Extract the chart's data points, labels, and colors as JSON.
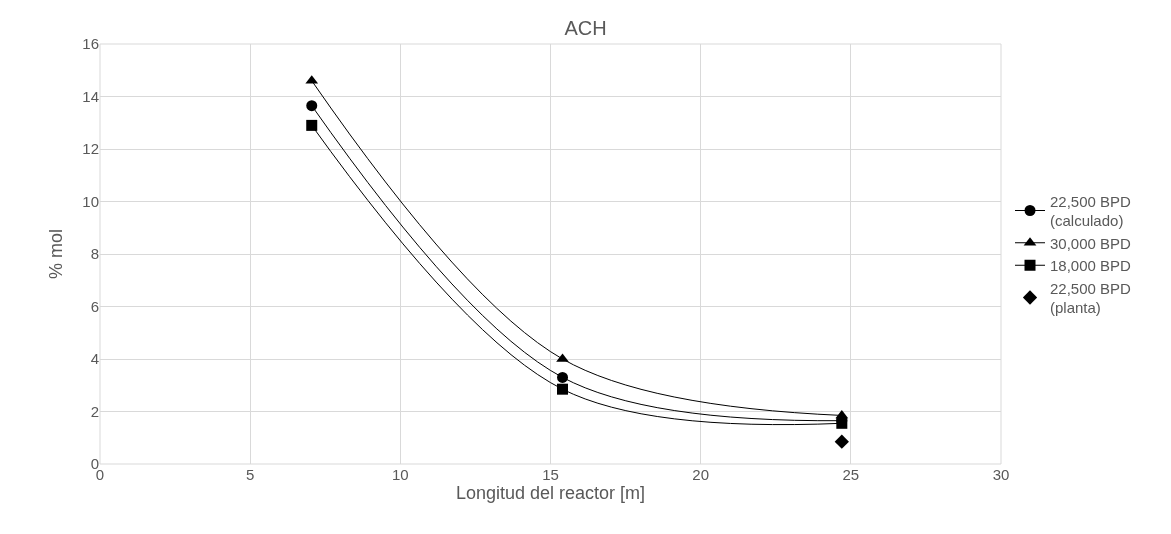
{
  "chart_data": {
    "type": "line",
    "title": "ACH",
    "xlabel": "Longitud del reactor [m]",
    "ylabel": "% mol",
    "xlim": [
      0,
      30
    ],
    "xticks": [
      0,
      5,
      10,
      15,
      20,
      25,
      30
    ],
    "ylim": [
      0,
      16
    ],
    "yticks": [
      0,
      2,
      4,
      6,
      8,
      10,
      12,
      14,
      16
    ],
    "grid": true,
    "legend": "right",
    "series": [
      {
        "name": "22,500 BPD\n(calculado)",
        "type": "line",
        "marker": "circle",
        "color": "#000000",
        "x": [
          7.05,
          15.4,
          24.7
        ],
        "values": [
          13.65,
          3.3,
          1.65
        ]
      },
      {
        "name": "30,000 BPD",
        "type": "line",
        "marker": "triangle",
        "color": "#000000",
        "x": [
          7.05,
          15.4,
          24.7
        ],
        "values": [
          14.6,
          4.0,
          1.85
        ]
      },
      {
        "name": "18,000 BPD",
        "type": "line",
        "marker": "square",
        "color": "#000000",
        "x": [
          7.05,
          15.4,
          24.7
        ],
        "values": [
          12.9,
          2.85,
          1.55
        ]
      },
      {
        "name": "22,500 BPD\n(planta)",
        "type": "scatter",
        "marker": "diamond",
        "color": "#000000",
        "x": [
          24.7
        ],
        "values": [
          0.85
        ]
      }
    ]
  }
}
